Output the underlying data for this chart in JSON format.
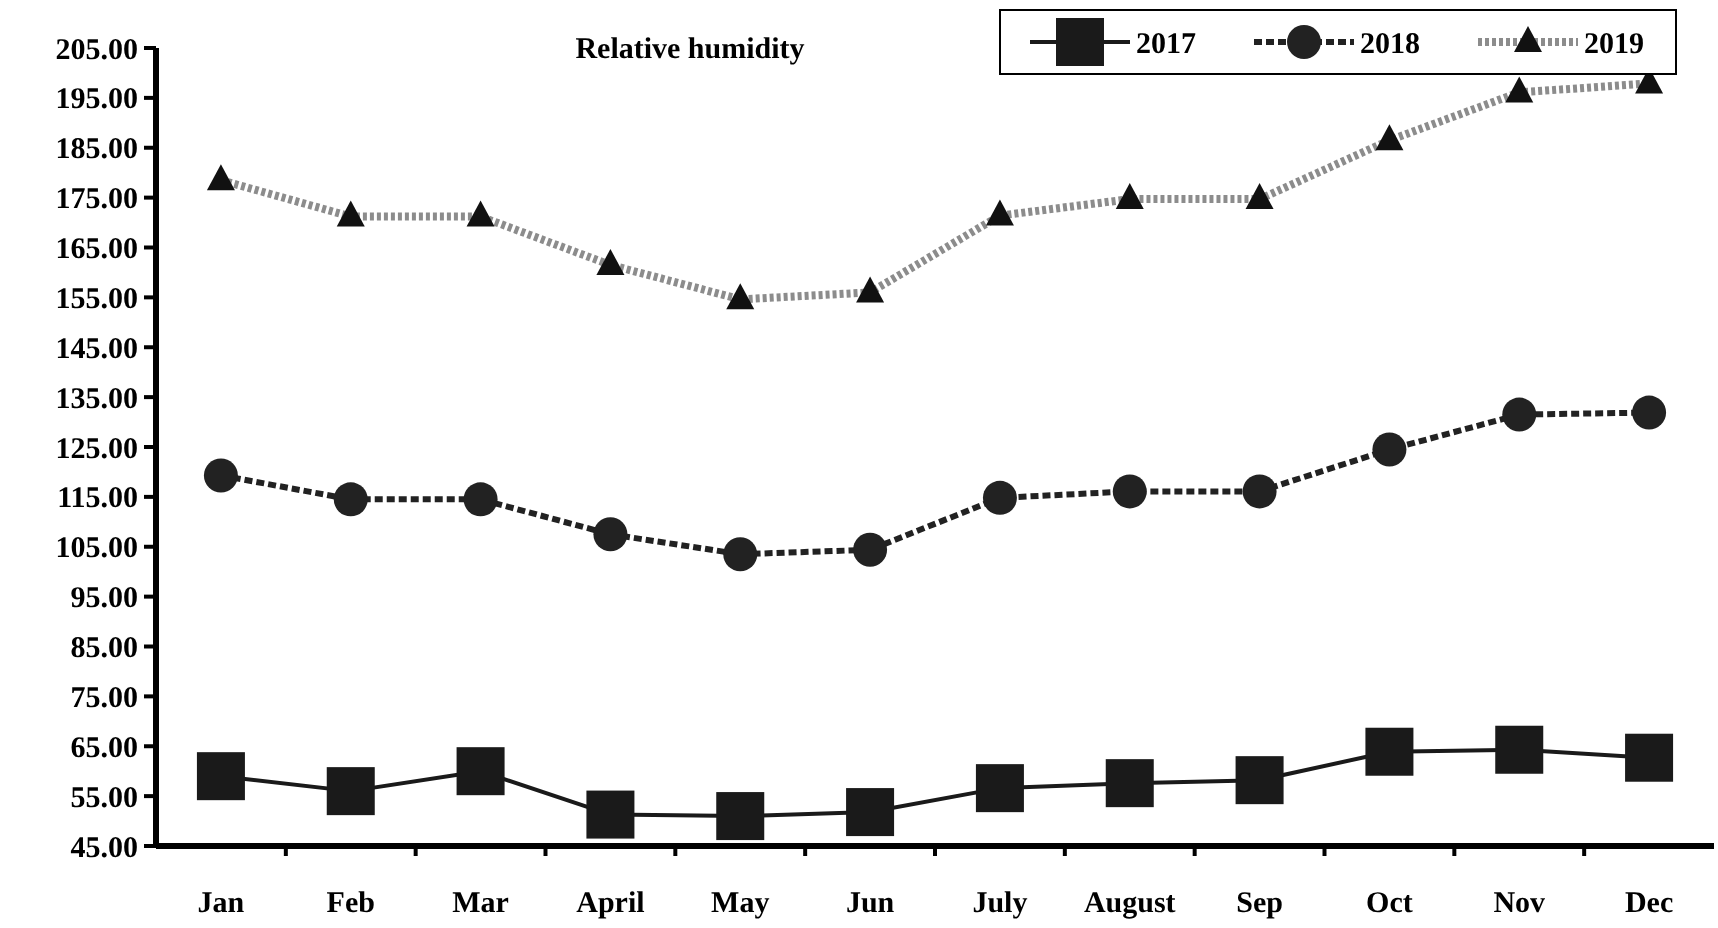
{
  "chart_data": {
    "type": "line",
    "title": "Relative humidity",
    "categories": [
      "Jan",
      "Feb",
      "Mar",
      "April",
      "May",
      "Jun",
      "July",
      "August",
      "Sep",
      "Oct",
      "Nov",
      "Dec"
    ],
    "series": [
      {
        "name": "2017",
        "color": "#1a1a1a",
        "marker": "square",
        "line_style": "solid",
        "values": [
          59.0,
          56.0,
          60.0,
          51.3,
          51.0,
          51.8,
          56.6,
          57.6,
          58.2,
          63.9,
          64.3,
          62.7
        ]
      },
      {
        "name": "2018",
        "color": "#222222",
        "marker": "circle",
        "line_style": "dashed",
        "values": [
          119.3,
          114.5,
          114.5,
          107.5,
          103.5,
          104.4,
          114.8,
          116.1,
          116.1,
          124.5,
          131.5,
          131.9
        ]
      },
      {
        "name": "2019",
        "color": "#8c8c8c",
        "marker": "triangle",
        "line_style": "dotted",
        "values": [
          178.5,
          171.2,
          171.2,
          161.5,
          154.6,
          156.0,
          171.4,
          174.7,
          174.7,
          186.5,
          196.1,
          197.9
        ]
      }
    ],
    "ylim": [
      45,
      205
    ],
    "yticks": [
      {
        "value": 45,
        "label": "45.00"
      },
      {
        "value": 55,
        "label": "55.00"
      },
      {
        "value": 65,
        "label": "65.00"
      },
      {
        "value": 75,
        "label": "75.00"
      },
      {
        "value": 85,
        "label": "85.00"
      },
      {
        "value": 95,
        "label": "95.00"
      },
      {
        "value": 105,
        "label": "105.00"
      },
      {
        "value": 115,
        "label": "115.00"
      },
      {
        "value": 125,
        "label": "125.00"
      },
      {
        "value": 135,
        "label": "135.00"
      },
      {
        "value": 145,
        "label": "145.00"
      },
      {
        "value": 155,
        "label": "155.00"
      },
      {
        "value": 165,
        "label": "165.00"
      },
      {
        "value": 175,
        "label": "175.00"
      },
      {
        "value": 185,
        "label": "185.00"
      },
      {
        "value": 195,
        "label": "195.00"
      },
      {
        "value": 205,
        "label": "205.00"
      }
    ],
    "legend": "top right",
    "grid": false
  }
}
